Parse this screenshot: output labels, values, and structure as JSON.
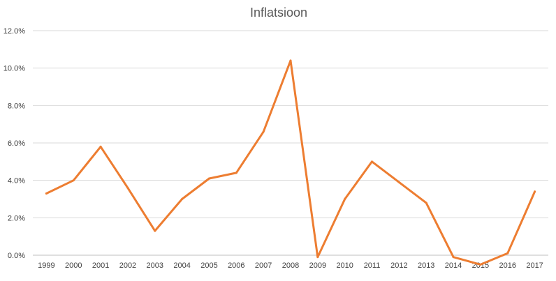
{
  "chart_data": {
    "type": "line",
    "title": "Inflatsioon",
    "xlabel": "",
    "ylabel": "",
    "categories": [
      "1999",
      "2000",
      "2001",
      "2002",
      "2003",
      "2004",
      "2005",
      "2006",
      "2007",
      "2008",
      "2009",
      "2010",
      "2011",
      "2012",
      "2013",
      "2014",
      "2015",
      "2016",
      "2017"
    ],
    "series": [
      {
        "values": [
          3.3,
          4.0,
          5.8,
          3.6,
          1.3,
          3.0,
          4.1,
          4.4,
          6.6,
          10.4,
          -0.1,
          3.0,
          5.0,
          3.9,
          2.8,
          -0.1,
          -0.5,
          0.1,
          3.4
        ]
      }
    ],
    "ylim": [
      0,
      12
    ],
    "ytick_values": [
      0,
      2,
      4,
      6,
      8,
      10,
      12
    ],
    "ytick_labels": [
      "0.0%",
      "2.0%",
      "4.0%",
      "6.0%",
      "8.0%",
      "10.0%",
      "12.0%"
    ],
    "grid": true,
    "legend": "none",
    "colors": {
      "series": "#ed7d31",
      "grid": "#d9d9d9",
      "axis": "#bfbfbf"
    }
  }
}
